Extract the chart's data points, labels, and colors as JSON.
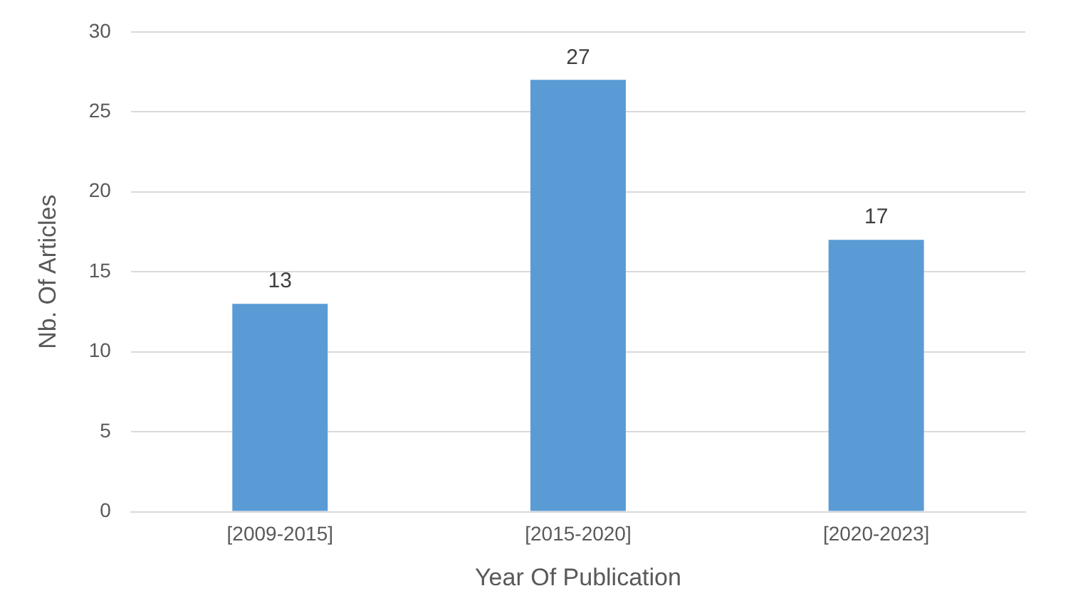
{
  "chart_data": {
    "type": "bar",
    "xlabel": "Year Of Publication",
    "ylabel": "Nb. Of Articles",
    "categories": [
      "[2009-2015]",
      "[2015-2020]",
      "[2020-2023]"
    ],
    "values": [
      13,
      27,
      17
    ],
    "color": "#5b9bd5",
    "ylim": [
      0,
      30
    ],
    "yticks": [
      0,
      5,
      10,
      15,
      20,
      25,
      30
    ],
    "grid": "y",
    "data_labels": true,
    "legend": false
  }
}
